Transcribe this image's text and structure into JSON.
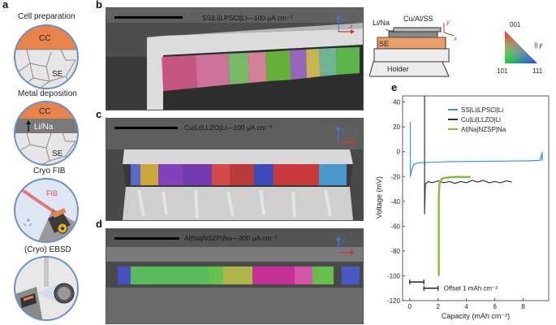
{
  "panel_a": {
    "letter": "a",
    "steps": [
      "Cell preparation",
      "Metal deposition",
      "Cryo FIB",
      "(Cryo) EBSD"
    ],
    "circle1_labels": {
      "cc": "CC",
      "se": "SE"
    },
    "circle2_labels": {
      "cc": "CC",
      "metal": "Li/Na",
      "se": "SE"
    },
    "circle3_labels": {
      "fib": "FIB"
    }
  },
  "panel_b": {
    "letter": "b",
    "title": "SS|Li|LPSCl|Li—100 μA cm⁻²",
    "axis_y": "y",
    "axis_x": "x"
  },
  "panel_c": {
    "letter": "c",
    "title": "Cu|Li|LLZO|Li—100 μA cm⁻²",
    "axis_y": "y",
    "axis_x": "x"
  },
  "panel_d": {
    "letter": "d",
    "title": "Al|Na|NSZP|Na—300 μA cm⁻²",
    "axis_y": "y",
    "axis_x": "x"
  },
  "schematic": {
    "li_na": "Li/Na",
    "cu_al_ss": "Cu/Al/SS",
    "se": "SE",
    "holder": "Holder",
    "axis_y": "y",
    "axis_x": "x"
  },
  "ipf": {
    "top": "001",
    "bottom_left": "101",
    "bottom_right": "111",
    "direction": "|| y"
  },
  "chart_data": {
    "type": "line",
    "letter": "e",
    "xlabel": "Capacity (mAh cm⁻²)",
    "ylabel": "Voltage (mV)",
    "xlim": [
      -0.5,
      9.8
    ],
    "ylim": [
      -120,
      45
    ],
    "xticks": [
      0,
      2,
      4,
      6,
      8
    ],
    "yticks": [
      40,
      20,
      0,
      -20,
      -40,
      -60,
      -80,
      -100,
      -120
    ],
    "series": [
      {
        "name": "SS|Li|LPSCl|Li",
        "color": "#3b9bd1",
        "points": [
          [
            0.05,
            24
          ],
          [
            0.05,
            -20
          ],
          [
            0.15,
            -14
          ],
          [
            0.3,
            -10
          ],
          [
            0.6,
            -9
          ],
          [
            1.5,
            -8.5
          ],
          [
            3,
            -8
          ],
          [
            5,
            -7.8
          ],
          [
            7,
            -7.5
          ],
          [
            8.5,
            -7.3
          ],
          [
            9.2,
            -7
          ],
          [
            9.3,
            -2
          ],
          [
            9.35,
            -7
          ],
          [
            9.35,
            0
          ]
        ]
      },
      {
        "name": "Cu|Li|LLZO|Li",
        "color": "#333333",
        "points": [
          [
            1.05,
            45
          ],
          [
            1.05,
            -50
          ],
          [
            1.1,
            -26
          ],
          [
            1.3,
            -24
          ],
          [
            1.6,
            -25
          ],
          [
            2.0,
            -23.5
          ],
          [
            2.4,
            -25
          ],
          [
            2.8,
            -24
          ],
          [
            3.2,
            -25.5
          ],
          [
            3.6,
            -24
          ],
          [
            4.0,
            -25
          ],
          [
            4.4,
            -23
          ],
          [
            4.8,
            -24.5
          ],
          [
            5.2,
            -23
          ],
          [
            5.6,
            -25
          ],
          [
            6.0,
            -24
          ],
          [
            6.4,
            -25
          ],
          [
            6.8,
            -23.5
          ],
          [
            7.2,
            -24.5
          ]
        ]
      },
      {
        "name": "Al|Na|NZSP|Na",
        "color": "#7cbf3a",
        "points": [
          [
            2.05,
            -100
          ],
          [
            2.05,
            -35
          ],
          [
            2.1,
            -26
          ],
          [
            2.25,
            -22
          ],
          [
            2.5,
            -21
          ],
          [
            3.0,
            -20.5
          ],
          [
            3.5,
            -20.3
          ],
          [
            4.0,
            -20.5
          ],
          [
            4.3,
            -20.3
          ]
        ]
      }
    ],
    "offset_label": "Offset 1 mAh cm⁻²",
    "offset_bars": [
      {
        "x1": 0.0,
        "x2": 1.0,
        "y": -105
      },
      {
        "x1": 1.0,
        "x2": 2.0,
        "y": -110
      }
    ]
  }
}
